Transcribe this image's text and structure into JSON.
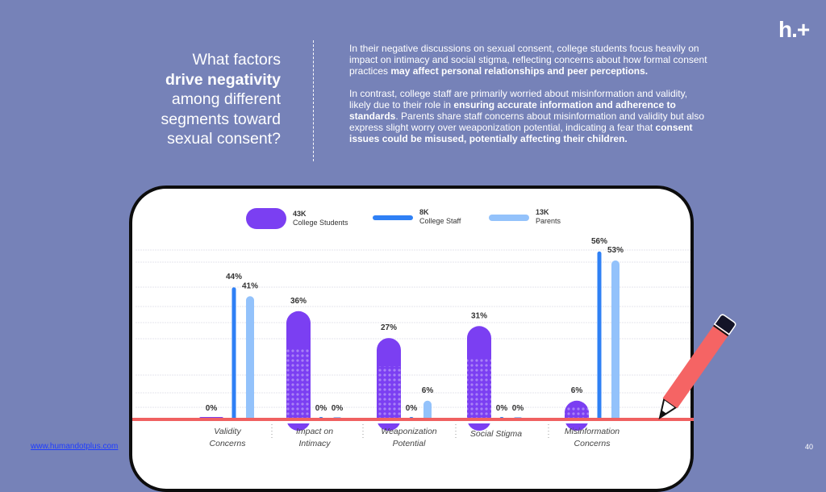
{
  "header": {
    "question_line1": "What factors",
    "question_line2_bold": "drive negativity",
    "question_line3": "among different",
    "question_line4": "segments toward",
    "question_line5": "sexual consent?",
    "para1_text": "In their negative discussions on sexual consent, college students focus heavily on impact on intimacy and social stigma, reflecting concerns about how formal consent practices ",
    "para1_bold": "may affect personal relationships and peer perceptions.",
    "para2_text1": "In contrast, college staff are primarily worried about misinformation and validity, likely due to their role in ",
    "para2_bold1": "ensuring accurate information and adherence to standards",
    "para2_text2": ". Parents share staff concerns about misinformation and validity but also express slight worry over weaponization potential, indicating a fear that ",
    "para2_bold2": "consent issues could be misused, potentially affecting their children.",
    "logo_text": "h.+"
  },
  "footer": {
    "link": "www.humandotplus.com",
    "page_number": "40"
  },
  "colors": {
    "background": "#7682b8",
    "college_students": "#7b3ff2",
    "college_staff": "#2f80f5",
    "parents": "#93c2fb",
    "baseline": "#f06060",
    "pencil": "#f56464"
  },
  "chart_data": {
    "type": "bar",
    "title": "",
    "xlabel": "",
    "ylabel": "",
    "ylim": [
      0,
      60
    ],
    "grid": true,
    "legend_position": "top",
    "categories": [
      [
        "Validity",
        "Concerns"
      ],
      [
        "Impact on",
        "Intimacy"
      ],
      [
        "Weaponization",
        "Potential"
      ],
      [
        "Social Stigma"
      ],
      [
        "Misinformation",
        "Concerns"
      ]
    ],
    "series": [
      {
        "name": "College Students",
        "count": "43K",
        "values": [
          0,
          36,
          27,
          31,
          6
        ],
        "labels": [
          "0%",
          "36%",
          "27%",
          "31%",
          "6%"
        ]
      },
      {
        "name": "College Staff",
        "count": "8K",
        "values": [
          44,
          0,
          0,
          0,
          56
        ],
        "labels": [
          "44%",
          "0%",
          "0%",
          "0%",
          "56%"
        ]
      },
      {
        "name": "Parents",
        "count": "13K",
        "values": [
          41,
          0,
          6,
          0,
          53
        ],
        "labels": [
          "41%",
          "0%",
          "6%",
          "0%",
          "53%"
        ]
      }
    ]
  }
}
